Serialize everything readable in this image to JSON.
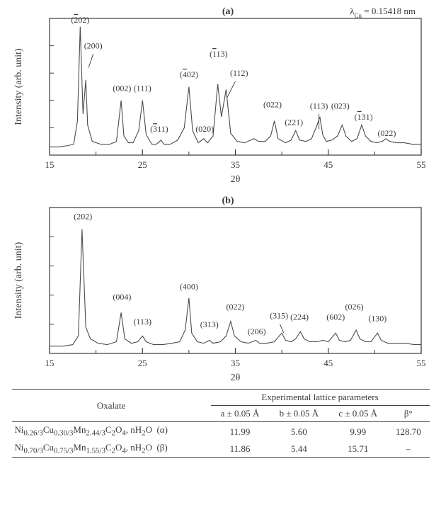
{
  "global": {
    "lambda_label": "λ_Cu = 0.15418 nm",
    "line_color": "#4a4a4a",
    "axis_color": "#3a3a3a",
    "label_color": "#3a3a3a",
    "background_color": "#ffffff",
    "font_family": "Times New Roman"
  },
  "chart_a": {
    "type": "line",
    "panel_label": "(a)",
    "xlabel": "2θ",
    "ylabel": "Intensity (arb. unit)",
    "x_range": [
      15,
      55
    ],
    "y_range": [
      0,
      100
    ],
    "x_ticks": [
      15,
      25,
      35,
      45,
      55
    ],
    "x_tick_labels": [
      "15",
      "25",
      "35",
      "45",
      "55"
    ],
    "tick_fontsize": 13,
    "axis_fontsize": 14,
    "peak_label_fontsize": 12,
    "line_width": 1.1,
    "peak_labels": [
      {
        "text": "(2̄02)",
        "two_theta": 18.3,
        "y": 97
      },
      {
        "text": "(200)",
        "two_theta": 19.7,
        "y": 78
      },
      {
        "text": "(002)",
        "two_theta": 22.8,
        "y": 47
      },
      {
        "text": "(111)",
        "two_theta": 25.0,
        "y": 47
      },
      {
        "text": "(3̄11)",
        "two_theta": 26.8,
        "y": 17
      },
      {
        "text": "(4̄02)",
        "two_theta": 30.0,
        "y": 57
      },
      {
        "text": "(020)",
        "two_theta": 31.7,
        "y": 17
      },
      {
        "text": "(1̄13)",
        "two_theta": 33.2,
        "y": 72
      },
      {
        "text": "(112)",
        "two_theta": 35.4,
        "y": 58
      },
      {
        "text": "(022)",
        "two_theta": 39.0,
        "y": 35
      },
      {
        "text": "(221)",
        "two_theta": 41.3,
        "y": 22
      },
      {
        "text": "(113)",
        "two_theta": 44.0,
        "y": 34
      },
      {
        "text": "(023)",
        "two_theta": 46.3,
        "y": 34
      },
      {
        "text": "(1̄31)",
        "two_theta": 48.8,
        "y": 26
      },
      {
        "text": "(022)",
        "two_theta": 51.3,
        "y": 14
      }
    ],
    "leader_lines": [
      {
        "from": [
          19.7,
          74
        ],
        "to": [
          19.2,
          64
        ]
      },
      {
        "from": [
          35.0,
          54
        ],
        "to": [
          34.1,
          42
        ]
      },
      {
        "from": [
          44.0,
          30
        ],
        "to": [
          44.0,
          19
        ]
      }
    ],
    "trace": [
      [
        15,
        6
      ],
      [
        16,
        6
      ],
      [
        17,
        7
      ],
      [
        17.6,
        8
      ],
      [
        18.0,
        25
      ],
      [
        18.3,
        94
      ],
      [
        18.6,
        30
      ],
      [
        18.9,
        55
      ],
      [
        19.1,
        22
      ],
      [
        19.6,
        10
      ],
      [
        20.5,
        8
      ],
      [
        21.5,
        8
      ],
      [
        22.2,
        10
      ],
      [
        22.7,
        40
      ],
      [
        23.0,
        14
      ],
      [
        23.5,
        9
      ],
      [
        24.0,
        9
      ],
      [
        24.6,
        18
      ],
      [
        25.0,
        40
      ],
      [
        25.4,
        15
      ],
      [
        26.0,
        8
      ],
      [
        26.5,
        8
      ],
      [
        27.0,
        11
      ],
      [
        27.3,
        8
      ],
      [
        28.0,
        8
      ],
      [
        28.8,
        11
      ],
      [
        29.5,
        20
      ],
      [
        30.0,
        50
      ],
      [
        30.4,
        18
      ],
      [
        31.0,
        9
      ],
      [
        31.6,
        12
      ],
      [
        32.0,
        9
      ],
      [
        32.6,
        14
      ],
      [
        33.1,
        52
      ],
      [
        33.5,
        28
      ],
      [
        34.0,
        48
      ],
      [
        34.5,
        16
      ],
      [
        35.2,
        10
      ],
      [
        36.0,
        9
      ],
      [
        37.0,
        12
      ],
      [
        37.5,
        10
      ],
      [
        38.2,
        10
      ],
      [
        38.8,
        14
      ],
      [
        39.2,
        25
      ],
      [
        39.6,
        12
      ],
      [
        40.4,
        9
      ],
      [
        41.0,
        11
      ],
      [
        41.5,
        18
      ],
      [
        41.9,
        11
      ],
      [
        42.6,
        10
      ],
      [
        43.2,
        12
      ],
      [
        43.8,
        22
      ],
      [
        44.1,
        28
      ],
      [
        44.4,
        15
      ],
      [
        44.8,
        10
      ],
      [
        45.4,
        11
      ],
      [
        46.0,
        14
      ],
      [
        46.5,
        22
      ],
      [
        46.9,
        14
      ],
      [
        47.5,
        10
      ],
      [
        48.1,
        12
      ],
      [
        48.6,
        22
      ],
      [
        49.0,
        14
      ],
      [
        49.6,
        10
      ],
      [
        50.2,
        9
      ],
      [
        50.8,
        10
      ],
      [
        51.2,
        12
      ],
      [
        51.6,
        10
      ],
      [
        52.4,
        9
      ],
      [
        53.2,
        9
      ],
      [
        54.0,
        8
      ],
      [
        55.0,
        8
      ]
    ]
  },
  "chart_b": {
    "type": "line",
    "panel_label": "(b)",
    "xlabel": "2θ",
    "ylabel": "Intensity (arb. unit)",
    "x_range": [
      15,
      55
    ],
    "y_range": [
      0,
      100
    ],
    "x_ticks": [
      15,
      25,
      35,
      45,
      55
    ],
    "x_tick_labels": [
      "15",
      "25",
      "35",
      "45",
      "55"
    ],
    "tick_fontsize": 13,
    "axis_fontsize": 14,
    "peak_label_fontsize": 12,
    "line_width": 1.1,
    "peak_labels": [
      {
        "text": "(202)",
        "two_theta": 18.6,
        "y": 92
      },
      {
        "text": "(004)",
        "two_theta": 22.8,
        "y": 37
      },
      {
        "text": "(113)",
        "two_theta": 25.0,
        "y": 20
      },
      {
        "text": "(400)",
        "two_theta": 30.0,
        "y": 44
      },
      {
        "text": "(313)",
        "two_theta": 32.2,
        "y": 18
      },
      {
        "text": "(022)",
        "two_theta": 35.0,
        "y": 30
      },
      {
        "text": "(206)",
        "two_theta": 37.3,
        "y": 13
      },
      {
        "text": "(315)",
        "two_theta": 39.7,
        "y": 24
      },
      {
        "text": "(224)",
        "two_theta": 41.9,
        "y": 23
      },
      {
        "text": "(602)",
        "two_theta": 45.8,
        "y": 23
      },
      {
        "text": "(026)",
        "two_theta": 47.8,
        "y": 30
      },
      {
        "text": "(130)",
        "two_theta": 50.3,
        "y": 22
      }
    ],
    "leader_lines": [
      {
        "from": [
          39.8,
          20
        ],
        "to": [
          40.2,
          14
        ]
      }
    ],
    "trace": [
      [
        15,
        5
      ],
      [
        16.5,
        5
      ],
      [
        17.5,
        6
      ],
      [
        18.1,
        12
      ],
      [
        18.5,
        85
      ],
      [
        18.9,
        18
      ],
      [
        19.4,
        10
      ],
      [
        20.2,
        7
      ],
      [
        21.2,
        6
      ],
      [
        22.2,
        8
      ],
      [
        22.7,
        28
      ],
      [
        23.1,
        10
      ],
      [
        23.8,
        7
      ],
      [
        24.5,
        8
      ],
      [
        25.0,
        12
      ],
      [
        25.4,
        8
      ],
      [
        26.2,
        6
      ],
      [
        27.2,
        6
      ],
      [
        28.2,
        7
      ],
      [
        29.0,
        8
      ],
      [
        29.6,
        16
      ],
      [
        30.0,
        38
      ],
      [
        30.3,
        14
      ],
      [
        30.9,
        8
      ],
      [
        31.6,
        7
      ],
      [
        32.2,
        9
      ],
      [
        32.6,
        7
      ],
      [
        33.4,
        8
      ],
      [
        34.0,
        12
      ],
      [
        34.5,
        22
      ],
      [
        34.9,
        12
      ],
      [
        35.6,
        8
      ],
      [
        36.4,
        7
      ],
      [
        37.2,
        9
      ],
      [
        37.6,
        7
      ],
      [
        38.4,
        7
      ],
      [
        39.2,
        8
      ],
      [
        40.0,
        14
      ],
      [
        40.4,
        9
      ],
      [
        41.0,
        8
      ],
      [
        41.5,
        10
      ],
      [
        42.0,
        15
      ],
      [
        42.4,
        10
      ],
      [
        43.0,
        8
      ],
      [
        43.8,
        8
      ],
      [
        44.4,
        9
      ],
      [
        45.0,
        8
      ],
      [
        45.8,
        14
      ],
      [
        46.2,
        9
      ],
      [
        46.8,
        8
      ],
      [
        47.4,
        9
      ],
      [
        48.0,
        16
      ],
      [
        48.4,
        10
      ],
      [
        49.0,
        8
      ],
      [
        49.6,
        8
      ],
      [
        50.3,
        14
      ],
      [
        50.7,
        9
      ],
      [
        51.4,
        7
      ],
      [
        52.4,
        7
      ],
      [
        53.4,
        7
      ],
      [
        54.2,
        6
      ],
      [
        55.0,
        6
      ]
    ]
  },
  "table": {
    "header_left": "Oxalate",
    "header_right": "Experimental lattice parameters",
    "columns": [
      "a ± 0.05 Å",
      "b ± 0.05 Å",
      "c ± 0.05 Å",
      "β°"
    ],
    "rows": [
      {
        "label_html": "Ni<sub>0.26/3</sub>Cu<sub>0.30/3</sub>Mn<sub>2.44/3</sub>C<sub>2</sub>O<sub>4</sub>, nH<sub>2</sub>O&nbsp;&nbsp;(α)",
        "a": "11.99",
        "b": "5.60",
        "c": "9.99",
        "beta": "128.70"
      },
      {
        "label_html": "Ni<sub>0.70/3</sub>Cu<sub>0.75/3</sub>Mn<sub>1.55/3</sub>C<sub>2</sub>O<sub>4</sub>, nH<sub>2</sub>O&nbsp;&nbsp;(β)",
        "a": "11.86",
        "b": "5.44",
        "c": "15.71",
        "beta": "–"
      }
    ]
  }
}
